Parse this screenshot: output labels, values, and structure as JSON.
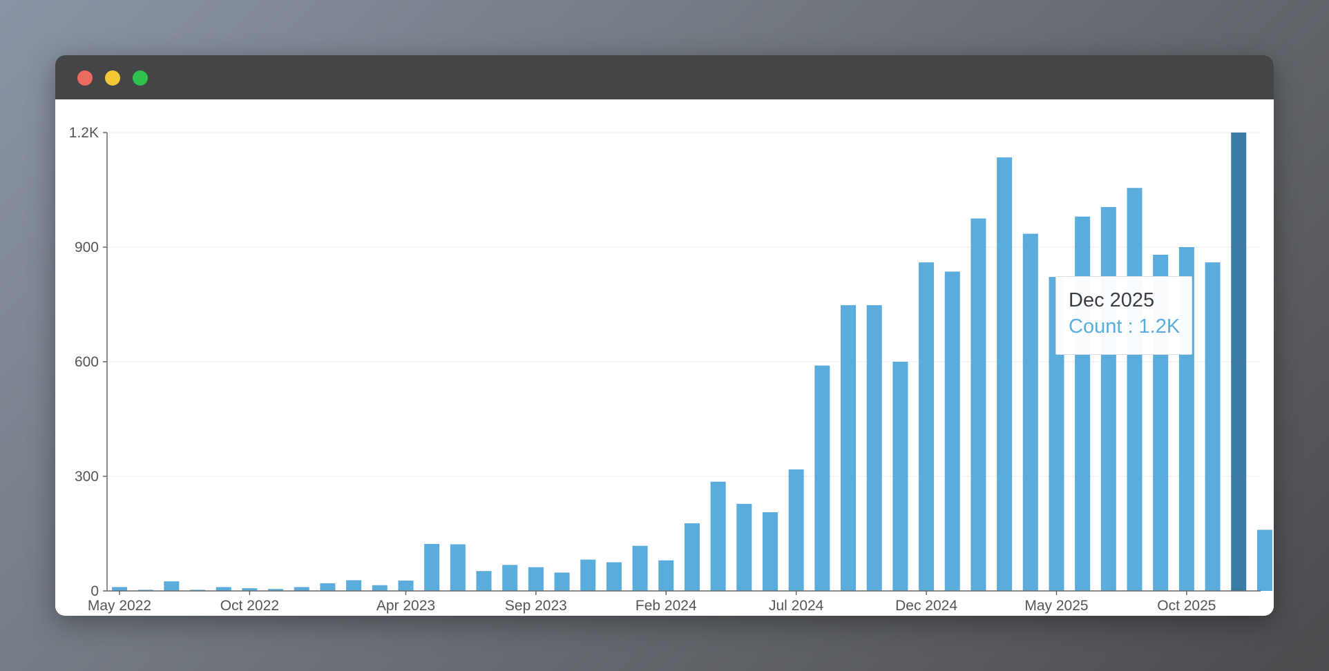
{
  "window": {
    "controls": [
      "close",
      "minimize",
      "maximize"
    ]
  },
  "chart_data": {
    "type": "bar",
    "categories": [
      "May 2022",
      "Jun 2022",
      "Jul 2022",
      "Aug 2022",
      "Sep 2022",
      "Oct 2022",
      "Nov 2022",
      "Dec 2022",
      "Jan 2023",
      "Feb 2023",
      "Mar 2023",
      "Apr 2023",
      "May 2023",
      "Jun 2023",
      "Jul 2023",
      "Aug 2023",
      "Sep 2023",
      "Oct 2023",
      "Nov 2023",
      "Dec 2023",
      "Jan 2024",
      "Feb 2024",
      "Mar 2024",
      "Apr 2024",
      "May 2024",
      "Jun 2024",
      "Jul 2024",
      "Aug 2024",
      "Sep 2024",
      "Oct 2024",
      "Nov 2024",
      "Dec 2024",
      "Jan 2025",
      "Feb 2025",
      "Mar 2025",
      "Apr 2025",
      "May 2025",
      "Jun 2025",
      "Jul 2025",
      "Aug 2025",
      "Sep 2025",
      "Oct 2025",
      "Nov 2025",
      "Dec 2025",
      "Jan 2026"
    ],
    "series": [
      {
        "values": [
          10,
          3,
          25,
          3,
          10,
          7,
          5,
          10,
          20,
          28,
          15,
          27,
          123,
          122,
          52,
          68,
          62,
          48,
          82,
          75,
          118,
          80,
          177,
          286,
          228,
          206,
          318,
          590,
          748,
          748,
          600,
          860,
          836,
          975,
          1135,
          935,
          822,
          980,
          1005,
          1055,
          880,
          900,
          860,
          1200,
          160
        ]
      }
    ],
    "x_tick_labels": [
      "May 2022",
      "Oct 2022",
      "Apr 2023",
      "Sep 2023",
      "Feb 2024",
      "Jul 2024",
      "Dec 2024",
      "May 2025",
      "Oct 2025"
    ],
    "y_tick_labels": [
      "0",
      "300",
      "600",
      "900",
      "1.2K"
    ],
    "y_ticks": [
      0,
      300,
      600,
      900,
      1200
    ],
    "ylim": [
      0,
      1200
    ],
    "grid": true,
    "highlighted_index": 43,
    "colors": {
      "bar": "#5aacdc",
      "highlight": "#3a7ba6",
      "tooltip_value": "#5aaddd"
    }
  },
  "tooltip": {
    "title": "Dec 2025",
    "value": "Count : 1.2K"
  }
}
